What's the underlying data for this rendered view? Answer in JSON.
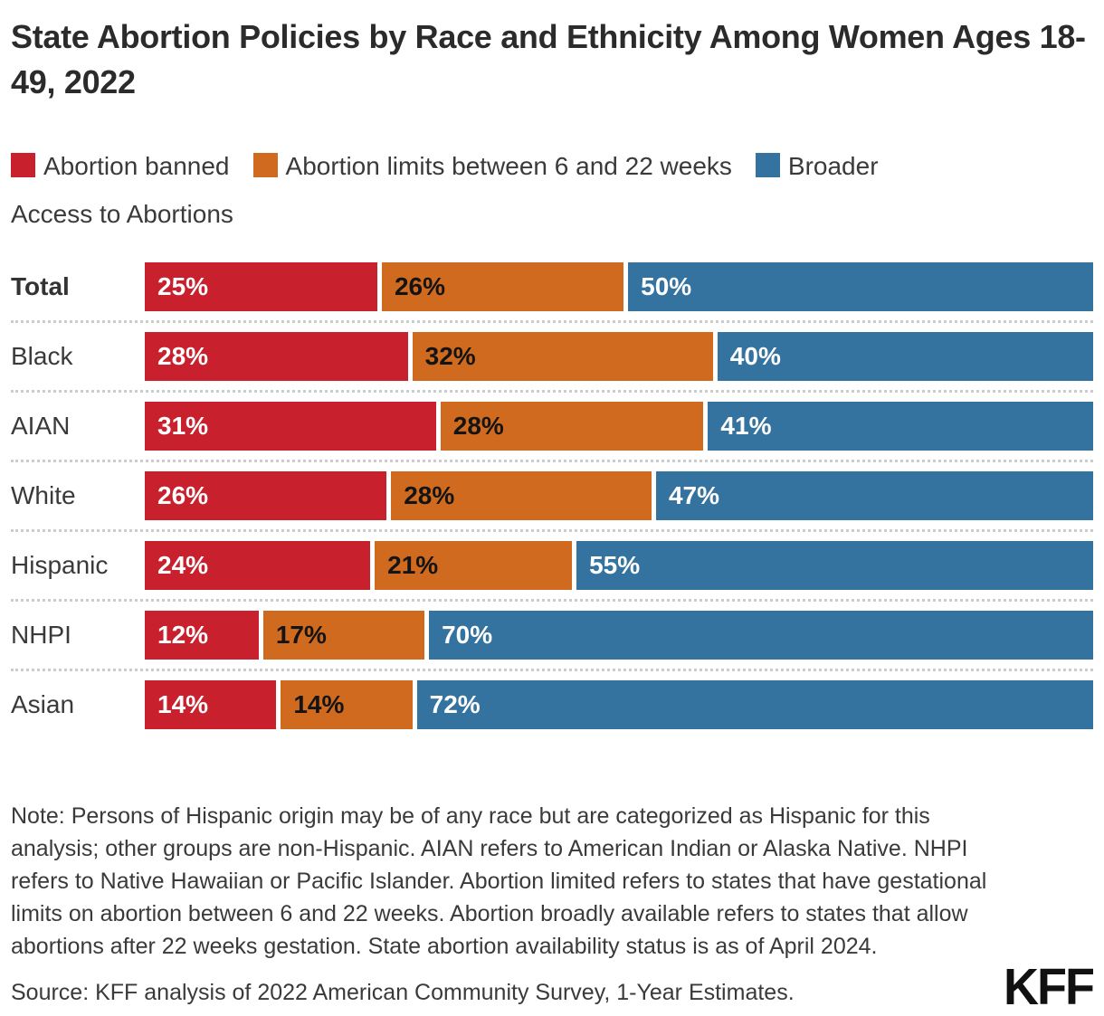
{
  "chart_data": {
    "type": "bar",
    "orientation": "horizontal",
    "stacked": true,
    "title": "State Abortion Policies by Race and Ethnicity Among Women Ages 18-49, 2022",
    "categories": [
      "Total",
      "Black",
      "AIAN",
      "White",
      "Hispanic",
      "NHPI",
      "Asian"
    ],
    "bold_category": "Total",
    "value_suffix": "%",
    "series": [
      {
        "name": "Abortion banned",
        "color": "#C9202E",
        "label_color": "#ffffff",
        "values": [
          25,
          28,
          31,
          26,
          24,
          12,
          14
        ]
      },
      {
        "name": "Abortion limits between 6 and 22 weeks",
        "color": "#D06A1E",
        "label_color": "#141414",
        "values": [
          26,
          32,
          28,
          28,
          21,
          17,
          14
        ]
      },
      {
        "name": "Broader Access to Abortions",
        "color": "#34739F",
        "label_color": "#ffffff",
        "values": [
          50,
          40,
          41,
          47,
          55,
          70,
          72
        ]
      }
    ],
    "legend_position": "top",
    "grid": false,
    "xlim": [
      0,
      100
    ],
    "separator_style": "dotted"
  },
  "legend": {
    "row1": [
      {
        "label": "Abortion banned",
        "color": "#C9202E"
      },
      {
        "label": "Abortion limits between 6 and 22 weeks",
        "color": "#D06A1E"
      },
      {
        "label": "Broader",
        "color": "#34739F"
      }
    ],
    "row2_text": "Access to Abortions"
  },
  "notes": {
    "note": "Note: Persons of Hispanic origin may be of any race but are categorized as Hispanic for this analysis; other groups are non-Hispanic. AIAN refers to American Indian or Alaska Native. NHPI refers to Native Hawaiian or Pacific Islander. Abortion limited refers to states that have gestational limits on abortion between 6 and 22 weeks. Abortion broadly available refers to states that allow abortions after 22 weeks gestation. State abortion availability status is as of April 2024.",
    "source": "Source: KFF analysis of 2022 American Community Survey, 1-Year Estimates."
  },
  "footer": {
    "logo_text": "KFF"
  }
}
